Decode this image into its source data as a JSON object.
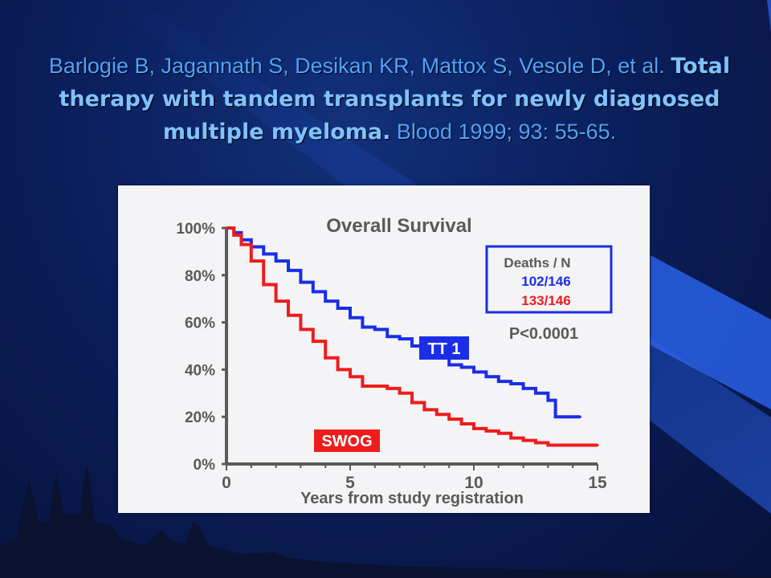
{
  "citation": {
    "authors": "Barlogie B, Jagannath S, Desikan KR, Mattox S, Vesole D, et al.",
    "title": "Total therapy with tandem transplants for newly diagnosed multiple myeloma.",
    "source": "Blood 1999; 93: 55-65."
  },
  "colors": {
    "background": "#0b1f5c",
    "citation_text": "#4fa3ff",
    "tt1": "#1a2ee6",
    "swog": "#ee1c1c"
  },
  "chart_data": {
    "type": "line",
    "title": "Overall Survival",
    "xlabel": "Years from study registration",
    "ylabel": "",
    "xlim": [
      0,
      15
    ],
    "ylim": [
      0,
      100
    ],
    "x_ticks": [
      "0",
      "5",
      "10",
      "15"
    ],
    "y_ticks": [
      "0%",
      "20%",
      "40%",
      "60%",
      "80%",
      "100%"
    ],
    "legend_box": {
      "header": "Deaths / N",
      "entries": [
        {
          "series": "TT 1",
          "text": "102/146"
        },
        {
          "series": "SWOG",
          "text": "133/146"
        }
      ],
      "pvalue": "P<0.0001"
    },
    "series": [
      {
        "name": "TT 1",
        "label": "TT 1",
        "x": [
          0,
          0.3,
          0.6,
          1,
          1.5,
          2,
          2.5,
          3,
          3.5,
          4,
          4.5,
          5,
          5.5,
          6,
          6.5,
          7,
          7.5,
          8,
          8.5,
          9,
          9.5,
          10,
          10.5,
          11,
          11.5,
          12,
          12.5,
          13,
          13.3,
          14,
          14.3
        ],
        "y": [
          100,
          98,
          95,
          92,
          89,
          86,
          82,
          77,
          73,
          69,
          66,
          62,
          58,
          57,
          54,
          53,
          50,
          47,
          46,
          42,
          41,
          39,
          37,
          35,
          34,
          32,
          30,
          27,
          20,
          20,
          20
        ]
      },
      {
        "name": "SWOG",
        "label": "SWOG",
        "x": [
          0,
          0.3,
          0.6,
          1,
          1.5,
          2,
          2.5,
          3,
          3.5,
          4,
          4.5,
          5,
          5.5,
          6,
          6.5,
          7,
          7.5,
          8,
          8.5,
          9,
          9.5,
          10,
          10.5,
          11,
          11.5,
          12,
          12.5,
          13,
          14,
          15
        ],
        "y": [
          100,
          97,
          93,
          86,
          76,
          69,
          63,
          57,
          52,
          45,
          40,
          37,
          33,
          33,
          32,
          30,
          26,
          23,
          21,
          19,
          17,
          15,
          14,
          13,
          11,
          10,
          9,
          8,
          8,
          8
        ]
      }
    ],
    "grid": false,
    "legend_position": "top-right"
  }
}
